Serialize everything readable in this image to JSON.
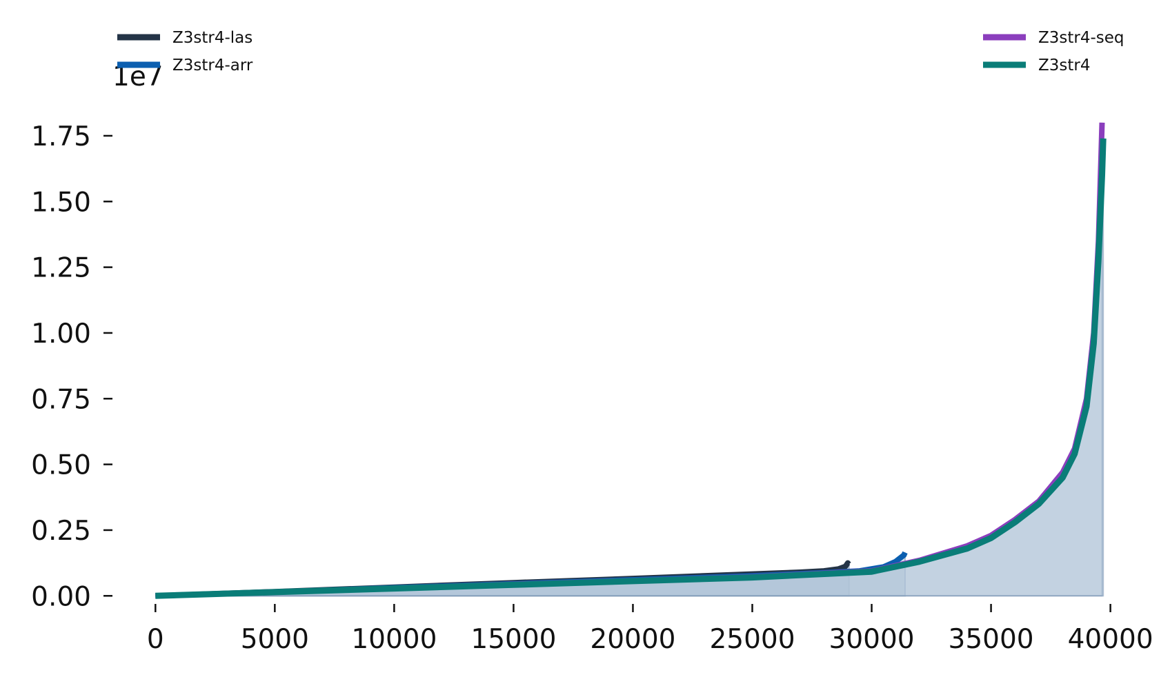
{
  "chart_data": {
    "type": "area",
    "title": "",
    "xlabel": "",
    "ylabel": "",
    "y_offset_label": "1e7",
    "xlim": [
      -500,
      40300
    ],
    "ylim": [
      -150000,
      18600000
    ],
    "x_ticks": [
      0,
      5000,
      10000,
      15000,
      20000,
      25000,
      30000,
      35000,
      40000
    ],
    "x_tick_labels": [
      "0",
      "5000",
      "10000",
      "15000",
      "20000",
      "25000",
      "30000",
      "35000",
      "40000"
    ],
    "y_ticks": [
      0,
      2500000,
      5000000,
      7500000,
      10000000,
      12500000,
      15000000,
      17500000
    ],
    "y_tick_labels": [
      "0.00",
      "0.25",
      "0.50",
      "0.75",
      "1.00",
      "1.25",
      "1.50",
      "1.75"
    ],
    "grid": false,
    "fill_color": "#b0c4d8",
    "legend": [
      {
        "position": "top-left",
        "entries": [
          "Z3str4-las",
          "Z3str4-arr"
        ]
      },
      {
        "position": "top-right",
        "entries": [
          "Z3str4-seq",
          "Z3str4"
        ]
      }
    ],
    "series": [
      {
        "name": "Z3str4-las",
        "color": "#243447",
        "points": [
          [
            0,
            0
          ],
          [
            5000,
            160000
          ],
          [
            10000,
            330000
          ],
          [
            15000,
            500000
          ],
          [
            20000,
            660000
          ],
          [
            25000,
            830000
          ],
          [
            27000,
            900000
          ],
          [
            28000,
            950000
          ],
          [
            28600,
            1020000
          ],
          [
            28900,
            1120000
          ],
          [
            29000,
            1250000
          ],
          [
            29050,
            1200000
          ]
        ]
      },
      {
        "name": "Z3str4-arr",
        "color": "#0b5fb0",
        "points": [
          [
            0,
            0
          ],
          [
            5000,
            150000
          ],
          [
            10000,
            310000
          ],
          [
            15000,
            460000
          ],
          [
            20000,
            610000
          ],
          [
            25000,
            760000
          ],
          [
            28000,
            880000
          ],
          [
            29500,
            950000
          ],
          [
            30500,
            1100000
          ],
          [
            31000,
            1300000
          ],
          [
            31350,
            1550000
          ],
          [
            31400,
            1650000
          ]
        ]
      },
      {
        "name": "Z3str4-seq",
        "color": "#8b3ebd",
        "points": [
          [
            0,
            0
          ],
          [
            5000,
            140000
          ],
          [
            10000,
            290000
          ],
          [
            15000,
            440000
          ],
          [
            20000,
            580000
          ],
          [
            25000,
            720000
          ],
          [
            30000,
            950000
          ],
          [
            32000,
            1350000
          ],
          [
            34000,
            1900000
          ],
          [
            35000,
            2300000
          ],
          [
            36000,
            2900000
          ],
          [
            37000,
            3600000
          ],
          [
            38000,
            4700000
          ],
          [
            38500,
            5600000
          ],
          [
            39000,
            7500000
          ],
          [
            39300,
            10000000
          ],
          [
            39500,
            13500000
          ],
          [
            39600,
            16500000
          ],
          [
            39650,
            18000000
          ]
        ]
      },
      {
        "name": "Z3str4",
        "color": "#0a7d78",
        "points": [
          [
            0,
            0
          ],
          [
            5000,
            140000
          ],
          [
            10000,
            280000
          ],
          [
            15000,
            420000
          ],
          [
            20000,
            560000
          ],
          [
            25000,
            700000
          ],
          [
            30000,
            920000
          ],
          [
            32000,
            1300000
          ],
          [
            34000,
            1800000
          ],
          [
            35000,
            2200000
          ],
          [
            36000,
            2800000
          ],
          [
            37000,
            3500000
          ],
          [
            38000,
            4500000
          ],
          [
            38500,
            5400000
          ],
          [
            39000,
            7200000
          ],
          [
            39300,
            9600000
          ],
          [
            39500,
            12800000
          ],
          [
            39650,
            16000000
          ],
          [
            39700,
            17400000
          ]
        ]
      }
    ]
  }
}
